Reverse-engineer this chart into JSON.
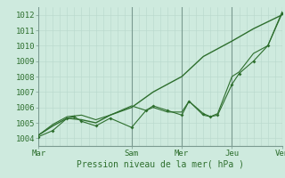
{
  "bg_color": "#ceeade",
  "grid_color_minor": "#b8d8cc",
  "grid_color_major": "#a0bfb5",
  "vline_color": "#7a9a90",
  "line_color": "#2d6e2d",
  "marker_color": "#2d6e2d",
  "xlabel": "Pression niveau de la mer( hPa )",
  "ylim": [
    1003.5,
    1012.5
  ],
  "yticks": [
    1004,
    1005,
    1006,
    1007,
    1008,
    1009,
    1010,
    1011,
    1012
  ],
  "xtick_labels": [
    "Mar",
    "Sam",
    "Mer",
    "Jeu",
    "Ven"
  ],
  "xtick_positions": [
    0,
    13,
    20,
    27,
    34
  ],
  "x_total": 34,
  "vlines": [
    0,
    13,
    20,
    27,
    34
  ],
  "series1": {
    "x": [
      0,
      2,
      4,
      6,
      8,
      10,
      13,
      16,
      20,
      23,
      27,
      30,
      34
    ],
    "y": [
      1004.2,
      1004.8,
      1005.3,
      1005.2,
      1005.0,
      1005.5,
      1006.0,
      1007.0,
      1008.0,
      1009.3,
      1010.3,
      1011.1,
      1012.0
    ]
  },
  "series2": {
    "x": [
      0,
      2,
      4,
      5,
      6,
      8,
      10,
      13,
      15,
      16,
      18,
      20,
      21,
      23,
      24,
      25,
      27,
      28,
      30,
      32,
      34
    ],
    "y": [
      1004.1,
      1004.5,
      1005.3,
      1005.4,
      1005.1,
      1004.8,
      1005.3,
      1004.7,
      1005.8,
      1006.1,
      1005.8,
      1005.5,
      1006.4,
      1005.6,
      1005.4,
      1005.5,
      1007.5,
      1008.2,
      1009.0,
      1010.0,
      1012.1
    ]
  },
  "series3": {
    "x": [
      0,
      2,
      4,
      6,
      8,
      10,
      13,
      15,
      16,
      18,
      20,
      21,
      23,
      24,
      25,
      27,
      28,
      30,
      32,
      34
    ],
    "y": [
      1004.2,
      1004.9,
      1005.4,
      1005.5,
      1005.2,
      1005.5,
      1006.1,
      1005.8,
      1006.0,
      1005.7,
      1005.7,
      1006.4,
      1005.5,
      1005.4,
      1005.6,
      1008.0,
      1008.3,
      1009.5,
      1010.0,
      1012.2
    ]
  }
}
